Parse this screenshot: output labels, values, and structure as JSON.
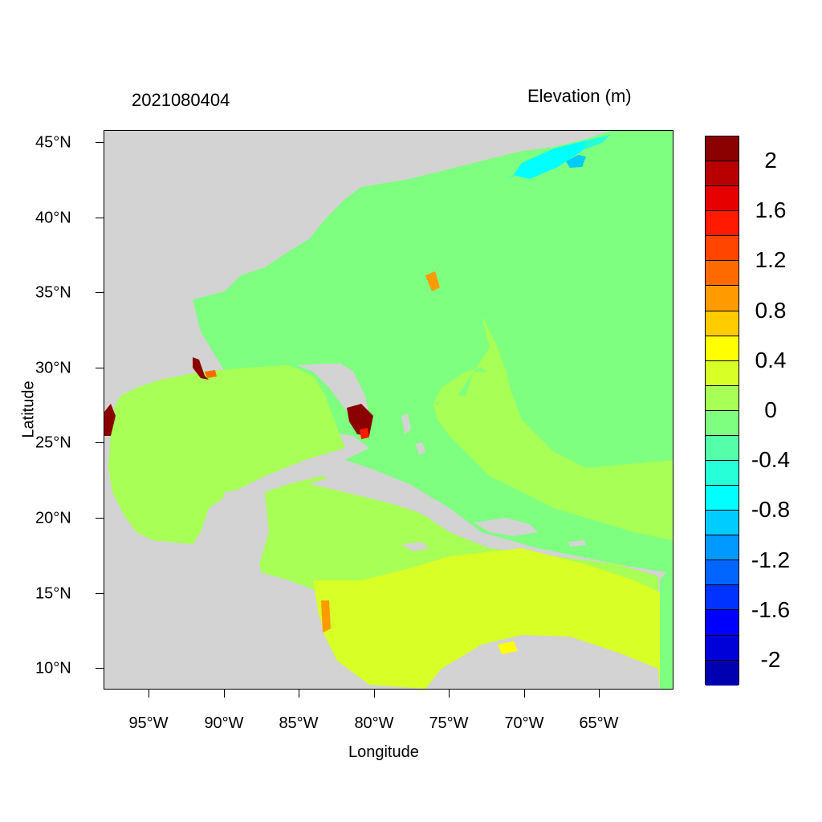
{
  "title_left": "2021080404",
  "title_right": "Elevation (m)",
  "xlabel": "Longitude",
  "ylabel": "Latitude",
  "xticks": [
    "95°W",
    "90°W",
    "85°W",
    "80°W",
    "75°W",
    "70°W",
    "65°W"
  ],
  "yticks": [
    "45°N",
    "40°N",
    "35°N",
    "30°N",
    "25°N",
    "20°N",
    "15°N",
    "10°N"
  ],
  "map": {
    "lon_range": [
      -98,
      -60
    ],
    "lat_range": [
      8.5,
      46
    ],
    "land_color": "#d3d3d3",
    "region": "Gulf of Mexico, Caribbean Sea and western North Atlantic"
  },
  "colorbar": {
    "labels": [
      "2",
      "1.6",
      "1.2",
      "0.8",
      "0.4",
      "0",
      "-0.4",
      "-0.8",
      "-1.2",
      "-1.6",
      "-2"
    ],
    "colors": [
      "#8b0000",
      "#b80000",
      "#e60000",
      "#ff1a00",
      "#ff4500",
      "#ff6a00",
      "#ff9a00",
      "#ffcc00",
      "#ffff00",
      "#d8ff26",
      "#a8ff55",
      "#7fff80",
      "#55ffaa",
      "#26ffd8",
      "#00ffff",
      "#00ccff",
      "#0099ff",
      "#0066ff",
      "#0033ff",
      "#0000ff",
      "#0000d8",
      "#0000b0"
    ]
  }
}
